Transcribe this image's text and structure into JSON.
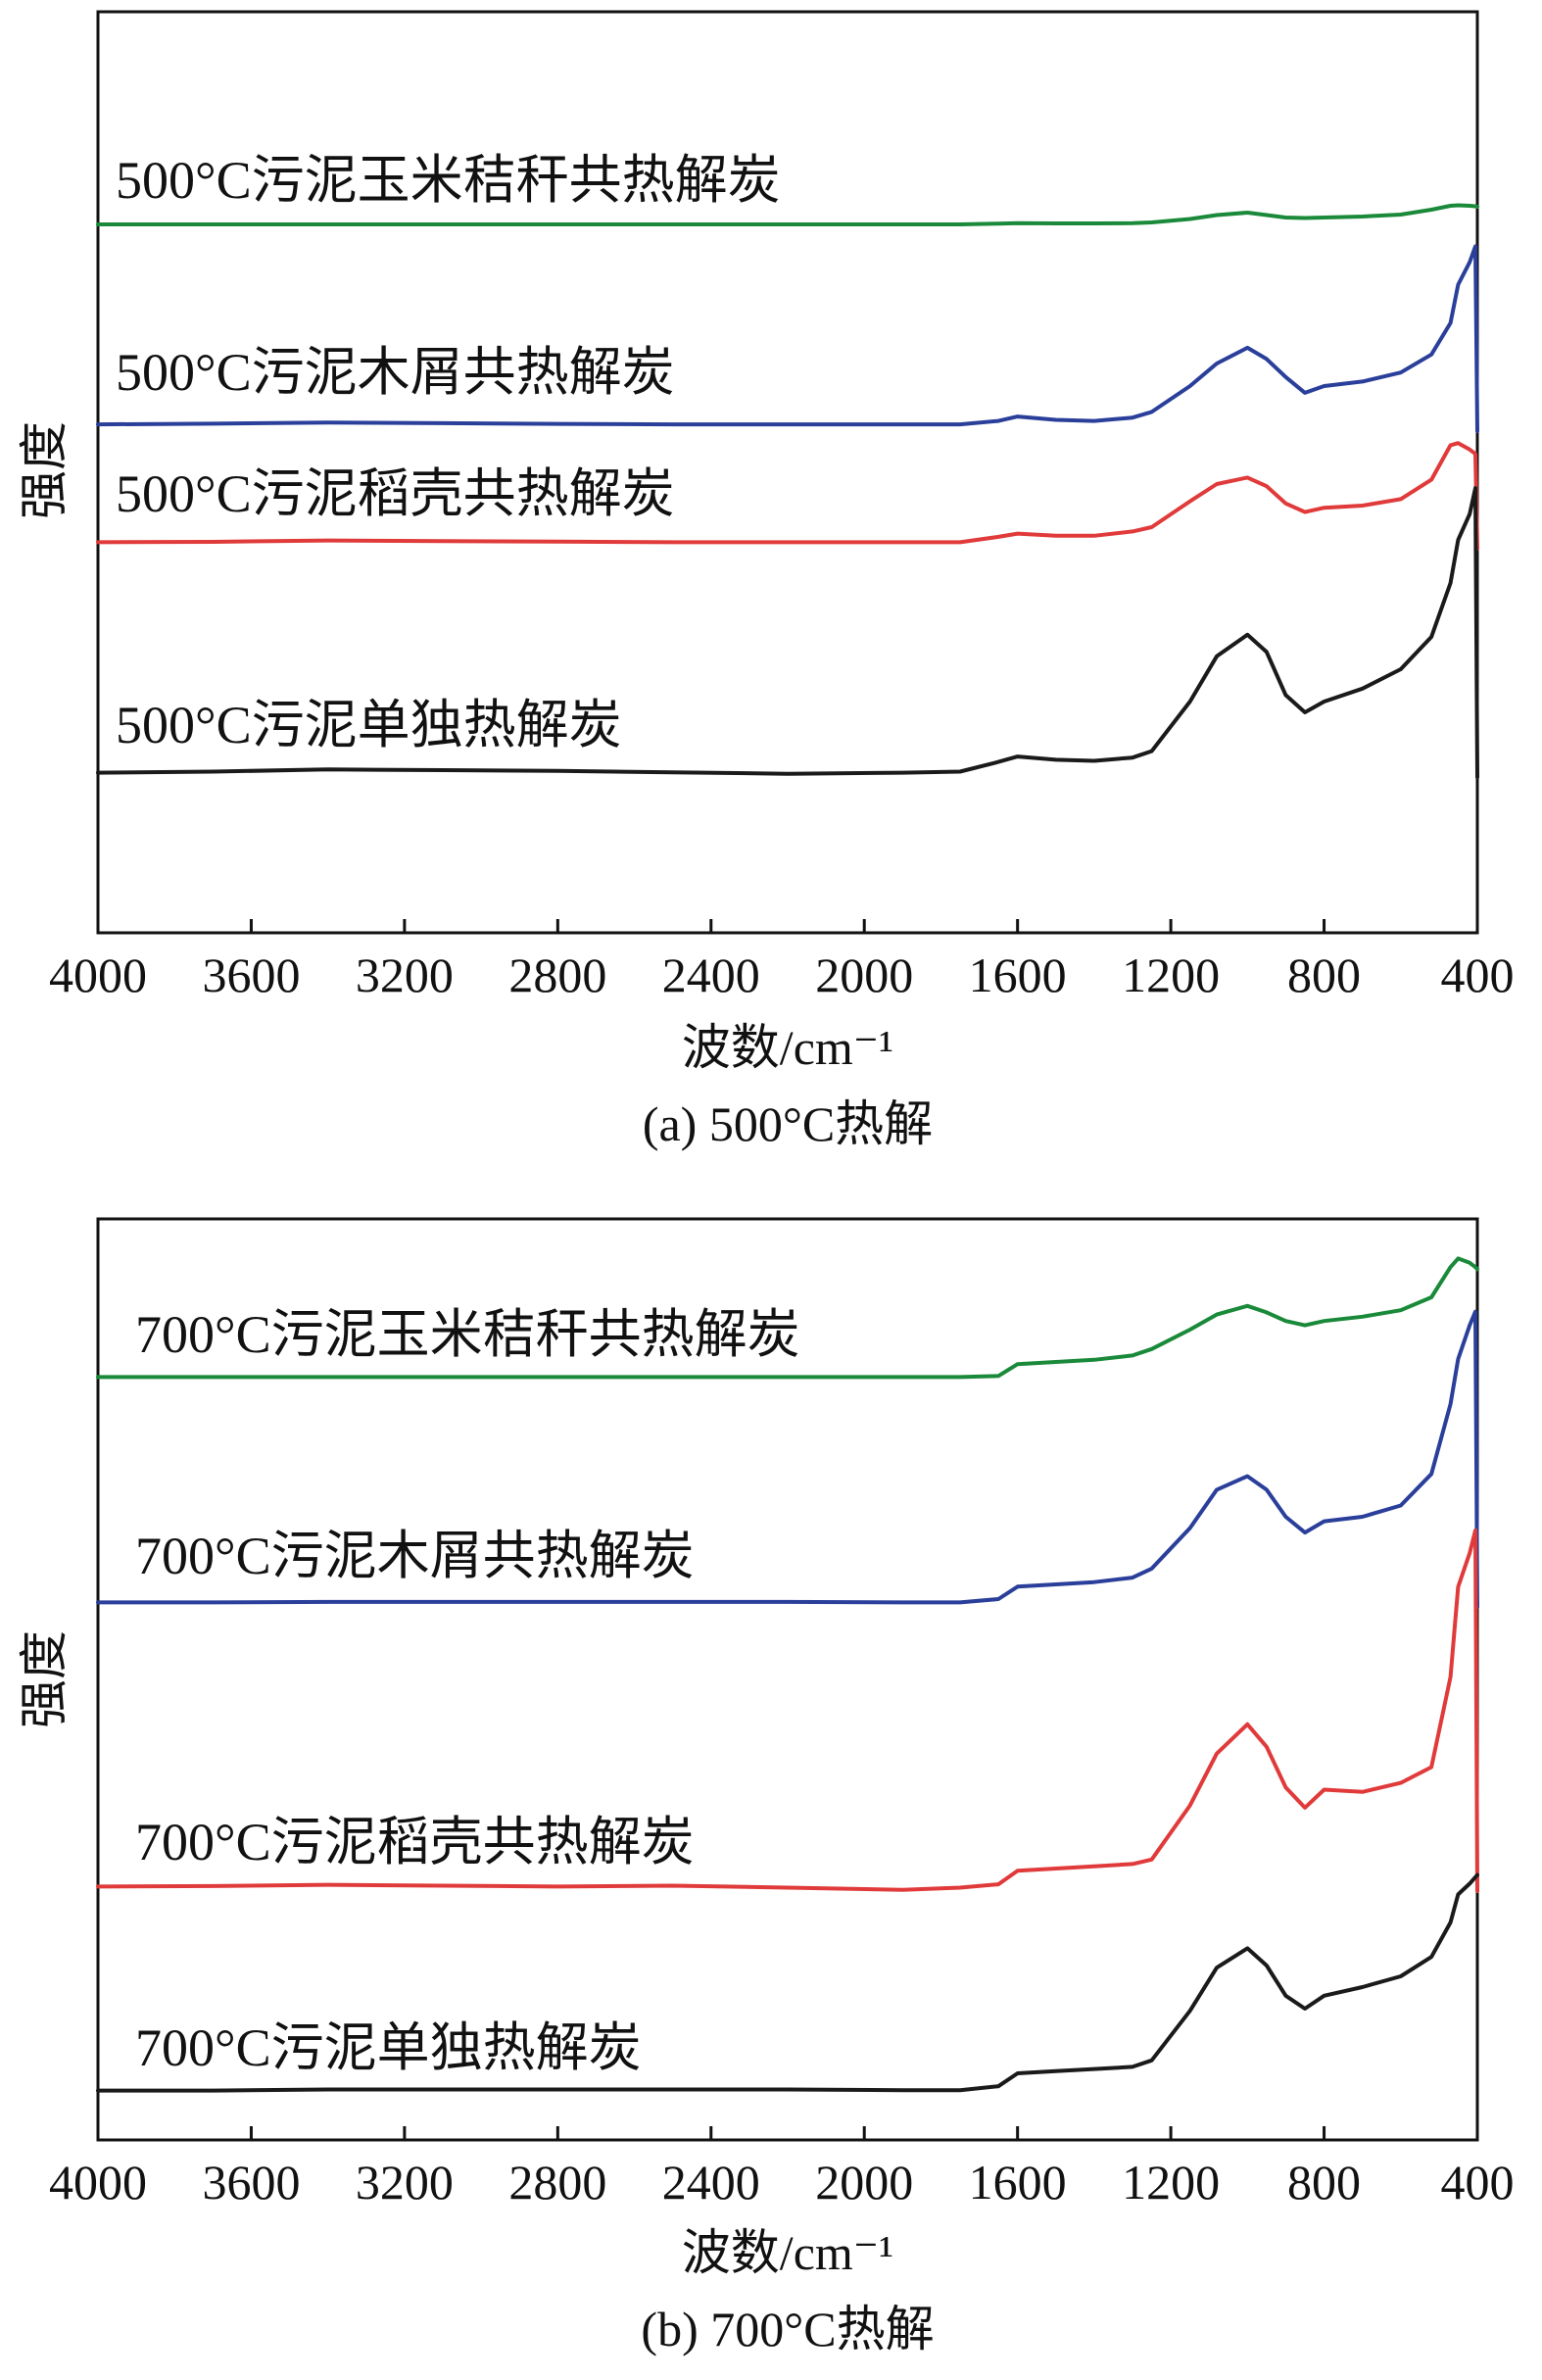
{
  "colors": {
    "green": "#1a8a3a",
    "blue": "#2a3f9a",
    "red": "#e03a3a",
    "black": "#1a1a1a"
  },
  "chart_data": [
    {
      "type": "line",
      "caption": "(a) 500°C热解",
      "xlabel": "波数/cm⁻¹",
      "ylabel": "强度",
      "xlim": [
        4000,
        400
      ],
      "xticks": [
        4000,
        3600,
        3200,
        2800,
        2400,
        2000,
        1600,
        1200,
        800,
        400
      ],
      "x": [
        4000,
        3700,
        3400,
        3100,
        2800,
        2500,
        2200,
        1900,
        1750,
        1650,
        1600,
        1500,
        1400,
        1300,
        1250,
        1150,
        1080,
        1000,
        950,
        900,
        850,
        800,
        700,
        600,
        520,
        470,
        450,
        420,
        405,
        400
      ],
      "series": [
        {
          "name": "500°C污泥玉米秸秆共热解炭",
          "color": "green",
          "values": [
            0.4,
            0.4,
            0.4,
            0.4,
            0.4,
            0.4,
            0.4,
            0.4,
            0.4,
            0.48,
            0.52,
            0.5,
            0.5,
            0.52,
            0.6,
            0.95,
            1.35,
            1.6,
            1.35,
            1.1,
            1.05,
            1.1,
            1.2,
            1.4,
            1.9,
            2.3,
            2.35,
            2.3,
            2.25,
            2.2
          ]
        },
        {
          "name": "500°C污泥木屑共热解炭",
          "color": "blue",
          "values": [
            0.3,
            0.33,
            0.38,
            0.35,
            0.32,
            0.3,
            0.3,
            0.3,
            0.3,
            0.45,
            0.65,
            0.5,
            0.45,
            0.6,
            0.85,
            2.0,
            3.0,
            3.7,
            3.2,
            2.4,
            1.7,
            2.0,
            2.2,
            2.6,
            3.4,
            4.8,
            6.5,
            7.5,
            8.2,
            0.0
          ]
        },
        {
          "name": "500°C污泥稻壳共热解炭",
          "color": "red",
          "values": [
            0.3,
            0.32,
            0.38,
            0.35,
            0.33,
            0.3,
            0.3,
            0.3,
            0.3,
            0.55,
            0.7,
            0.6,
            0.6,
            0.8,
            1.0,
            2.2,
            3.0,
            3.3,
            2.9,
            2.1,
            1.7,
            1.9,
            2.0,
            2.3,
            3.2,
            4.8,
            4.9,
            4.6,
            4.4,
            0.0
          ]
        },
        {
          "name": "500°C污泥单独热解炭",
          "color": "black",
          "values": [
            0.2,
            0.25,
            0.35,
            0.32,
            0.28,
            0.22,
            0.15,
            0.2,
            0.25,
            0.7,
            0.95,
            0.8,
            0.75,
            0.9,
            1.2,
            3.5,
            5.6,
            6.6,
            5.8,
            3.8,
            3.0,
            3.5,
            4.1,
            5.0,
            6.5,
            9.0,
            11.0,
            12.2,
            13.4,
            0.0
          ]
        }
      ]
    },
    {
      "type": "line",
      "caption": "(b) 700°C热解",
      "xlabel": "波数/cm⁻¹",
      "ylabel": "强度",
      "xlim": [
        4000,
        400
      ],
      "xticks": [
        4000,
        3600,
        3200,
        2800,
        2400,
        2000,
        1600,
        1200,
        800,
        400
      ],
      "x": [
        4000,
        3700,
        3400,
        3100,
        2800,
        2500,
        2200,
        1900,
        1750,
        1650,
        1600,
        1500,
        1400,
        1300,
        1250,
        1150,
        1080,
        1000,
        950,
        900,
        850,
        800,
        700,
        600,
        520,
        470,
        450,
        420,
        405,
        400
      ],
      "series": [
        {
          "name": "700°C污泥玉米秸秆共热解炭",
          "color": "green",
          "values": [
            0.3,
            0.3,
            0.3,
            0.3,
            0.3,
            0.3,
            0.3,
            0.3,
            0.3,
            0.35,
            0.9,
            1.0,
            1.1,
            1.3,
            1.6,
            2.5,
            3.2,
            3.6,
            3.3,
            2.9,
            2.7,
            2.9,
            3.1,
            3.4,
            4.0,
            5.4,
            5.8,
            5.6,
            5.4,
            5.3
          ]
        },
        {
          "name": "700°C污泥木屑共热解炭",
          "color": "blue",
          "values": [
            0.2,
            0.2,
            0.22,
            0.22,
            0.22,
            0.22,
            0.22,
            0.2,
            0.2,
            0.35,
            0.9,
            1.0,
            1.1,
            1.3,
            1.7,
            3.5,
            5.2,
            5.8,
            5.2,
            4.0,
            3.3,
            3.8,
            4.0,
            4.5,
            5.9,
            9.0,
            11.0,
            12.5,
            13.1,
            0.0
          ]
        },
        {
          "name": "700°C污泥稻壳共热解炭",
          "color": "red",
          "values": [
            0.2,
            0.22,
            0.28,
            0.24,
            0.2,
            0.24,
            0.15,
            0.05,
            0.15,
            0.3,
            0.9,
            1.0,
            1.1,
            1.2,
            1.4,
            3.8,
            6.1,
            7.4,
            6.4,
            4.6,
            3.7,
            4.5,
            4.4,
            4.8,
            5.5,
            9.5,
            13.5,
            15.0,
            16.0,
            0.0
          ]
        },
        {
          "name": "700°C污泥单独热解炭",
          "color": "black",
          "values": [
            0.2,
            0.2,
            0.25,
            0.25,
            0.25,
            0.25,
            0.25,
            0.22,
            0.22,
            0.4,
            1.0,
            1.1,
            1.2,
            1.3,
            1.6,
            3.9,
            5.9,
            6.8,
            6.0,
            4.6,
            4.0,
            4.6,
            5.0,
            5.5,
            6.4,
            8.0,
            9.3,
            9.8,
            10.1,
            10.2
          ]
        }
      ]
    }
  ]
}
